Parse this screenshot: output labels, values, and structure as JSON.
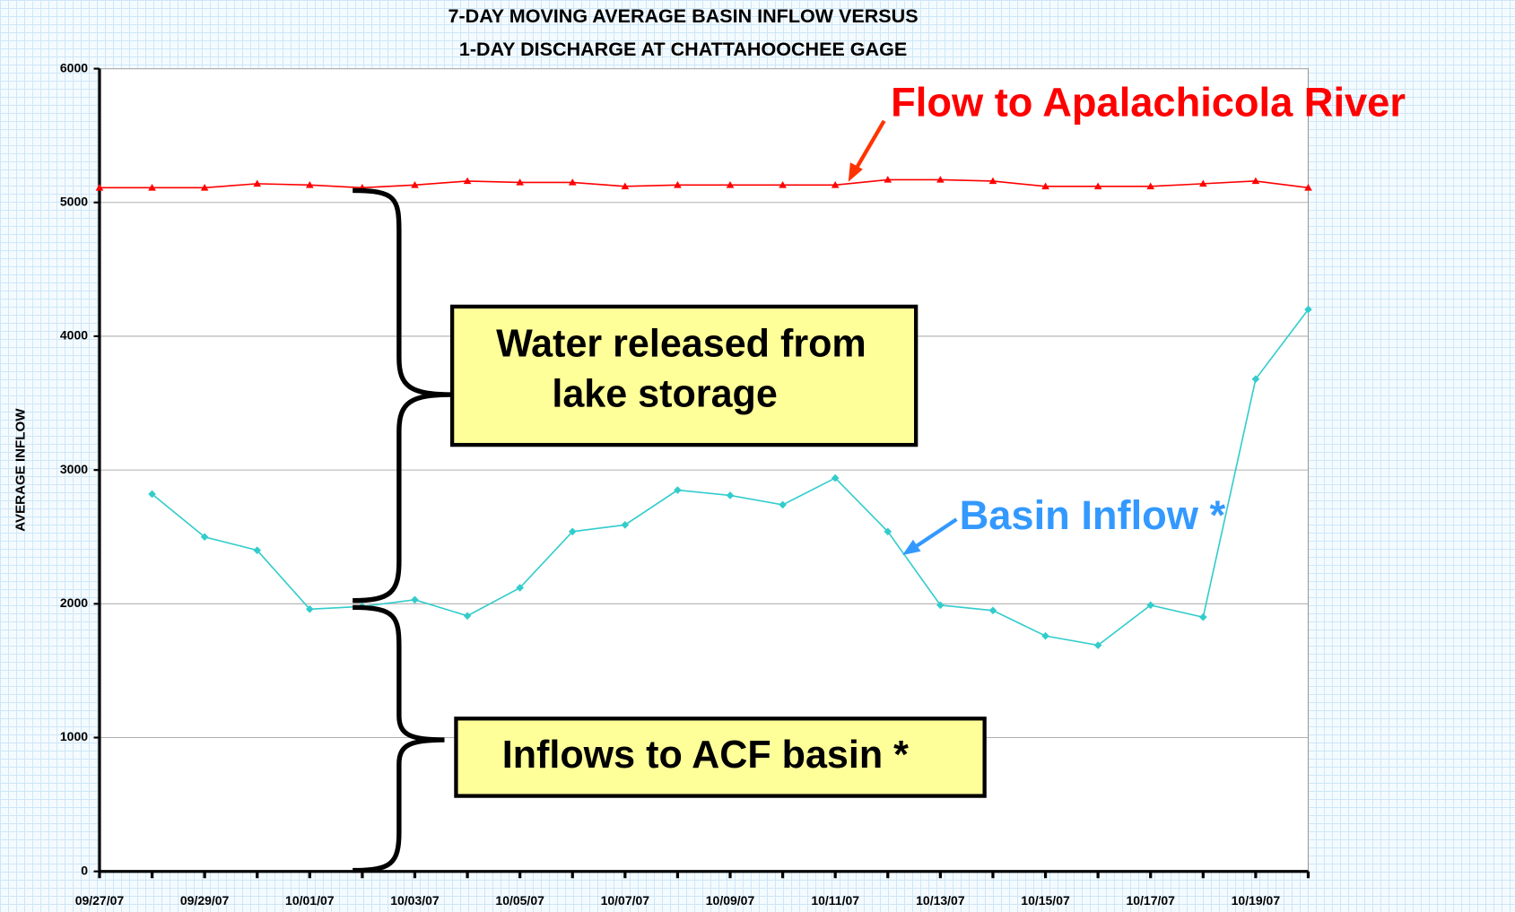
{
  "chart_data": {
    "type": "line",
    "title": [
      "7-DAY MOVING AVERAGE BASIN INFLOW VERSUS",
      "1-DAY DISCHARGE AT CHATTAHOOCHEE GAGE"
    ],
    "y_label": "AVERAGE INFLOW",
    "categories": [
      "09/27/07",
      null,
      "09/29/07",
      null,
      "10/01/07",
      null,
      "10/03/07",
      null,
      "10/05/07",
      null,
      "10/07/07",
      null,
      "10/09/07",
      null,
      "10/11/07",
      null,
      "10/13/07",
      null,
      "10/15/07",
      null,
      "10/17/07",
      null,
      "10/19/07",
      null
    ],
    "series": [
      {
        "name": "Flow to Apalachicola River",
        "color": "#ff0000",
        "marker": "triangle",
        "values": [
          5110,
          5110,
          5110,
          5140,
          5130,
          5110,
          5130,
          5160,
          5150,
          5150,
          5120,
          5130,
          5130,
          5130,
          5130,
          5170,
          5170,
          5160,
          5120,
          5120,
          5120,
          5140,
          5160,
          5110
        ]
      },
      {
        "name": "Basin Inflow *",
        "color": "#33cccc",
        "marker": "diamond",
        "values": [
          null,
          2820,
          2500,
          2400,
          1960,
          1980,
          2030,
          1910,
          2120,
          2540,
          2590,
          2850,
          2810,
          2740,
          2940,
          2540,
          1990,
          1950,
          1760,
          1690,
          1990,
          1900,
          3680,
          4200
        ]
      }
    ],
    "ylim": [
      0,
      6000
    ],
    "yticks": [
      0,
      1000,
      2000,
      3000,
      4000,
      5000,
      6000
    ],
    "grid": true,
    "annotations": {
      "storage": [
        "Water released from",
        "lake storage"
      ],
      "inflows": "Inflows to ACF basin *"
    }
  }
}
